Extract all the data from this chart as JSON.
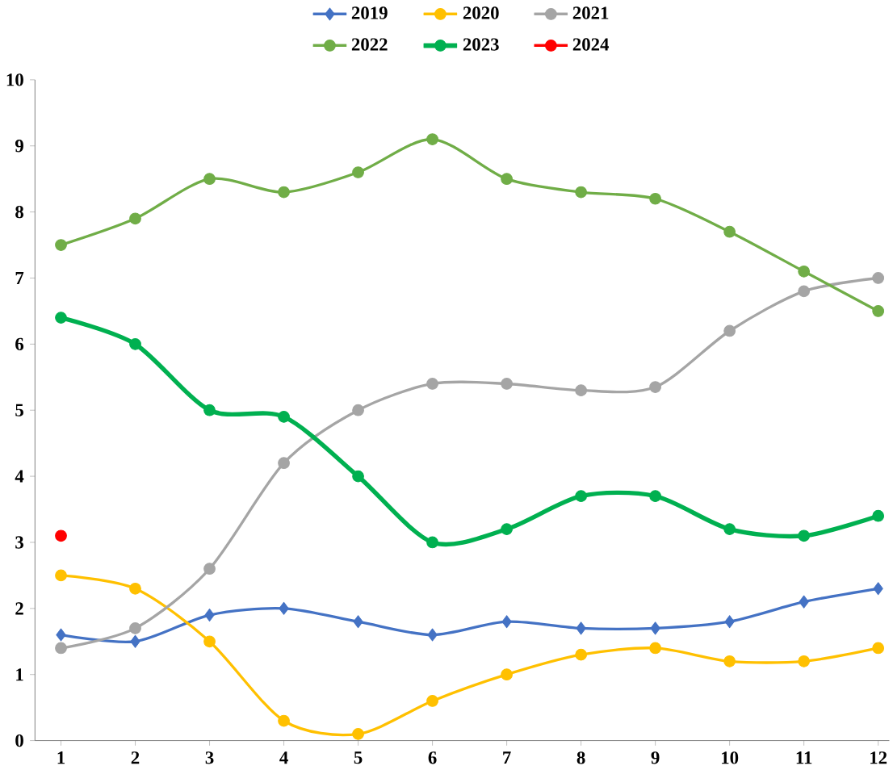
{
  "chart_data": {
    "type": "line",
    "categories": [
      "1",
      "2",
      "3",
      "4",
      "5",
      "6",
      "7",
      "8",
      "9",
      "10",
      "11",
      "12"
    ],
    "ylim": [
      0,
      10
    ],
    "yticks": [
      0,
      1,
      2,
      3,
      4,
      5,
      6,
      7,
      8,
      9,
      10
    ],
    "grid": false,
    "legend": "top",
    "series": [
      {
        "name": "2019",
        "color": "#4472c4",
        "marker": "diamond",
        "values": [
          1.6,
          1.5,
          1.9,
          2.0,
          1.8,
          1.6,
          1.8,
          1.7,
          1.7,
          1.8,
          2.1,
          2.3
        ]
      },
      {
        "name": "2020",
        "color": "#ffc000",
        "marker": "circle",
        "values": [
          2.5,
          2.3,
          1.5,
          0.3,
          0.1,
          0.6,
          1.0,
          1.3,
          1.4,
          1.2,
          1.2,
          1.4
        ]
      },
      {
        "name": "2021",
        "color": "#a5a5a5",
        "marker": "circle",
        "values": [
          1.4,
          1.7,
          2.6,
          4.2,
          5.0,
          5.4,
          5.4,
          5.3,
          5.35,
          6.2,
          6.8,
          7.0
        ]
      },
      {
        "name": "2022",
        "color": "#70ad47",
        "marker": "circle",
        "values": [
          7.5,
          7.9,
          8.5,
          8.3,
          8.6,
          9.1,
          8.5,
          8.3,
          8.2,
          7.7,
          7.1,
          6.5
        ]
      },
      {
        "name": "2023",
        "color": "#00b050",
        "marker": "circle",
        "values": [
          6.4,
          6.0,
          5.0,
          4.9,
          4.0,
          3.0,
          3.2,
          3.7,
          3.7,
          3.2,
          3.1,
          3.4
        ]
      },
      {
        "name": "2024",
        "color": "#ff0000",
        "marker": "circle",
        "values": [
          3.1,
          null,
          null,
          null,
          null,
          null,
          null,
          null,
          null,
          null,
          null,
          null
        ]
      }
    ]
  }
}
